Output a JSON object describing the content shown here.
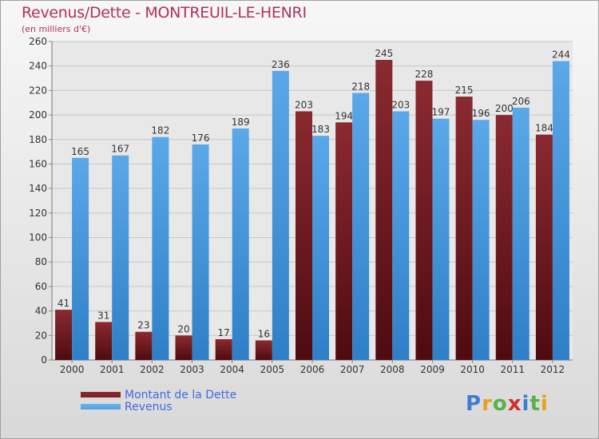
{
  "title": "Revenus/Dette - MONTREUIL-LE-HENRI",
  "subtitle": "(en milliers d'€)",
  "logo": {
    "letters": [
      "P",
      "r",
      "o",
      "x",
      "i",
      "t",
      "i"
    ],
    "colors": [
      "#3a7fd5",
      "#e8a020",
      "#59b047",
      "#d03030",
      "#3a7fd5",
      "#59b047",
      "#e8a020"
    ]
  },
  "chart_data": {
    "type": "bar",
    "categories": [
      "2000",
      "2001",
      "2002",
      "2003",
      "2004",
      "2005",
      "2006",
      "2007",
      "2008",
      "2009",
      "2010",
      "2011",
      "2012"
    ],
    "series": [
      {
        "name": "Montant de la Dette",
        "color": "#7b1f26",
        "values": [
          41,
          31,
          23,
          20,
          17,
          16,
          203,
          194,
          245,
          228,
          215,
          200,
          184
        ]
      },
      {
        "name": "Revenus",
        "color": "#4f9fe0",
        "values": [
          165,
          167,
          182,
          176,
          189,
          236,
          183,
          218,
          203,
          197,
          196,
          206,
          244
        ]
      }
    ],
    "ylim": [
      0,
      260
    ],
    "yticks": [
      "0",
      "20",
      "40",
      "60",
      "80",
      "100",
      "120",
      "140",
      "160",
      "180",
      "200",
      "220",
      "240",
      "260"
    ],
    "grid": true,
    "legend_position": "bottom-left"
  }
}
